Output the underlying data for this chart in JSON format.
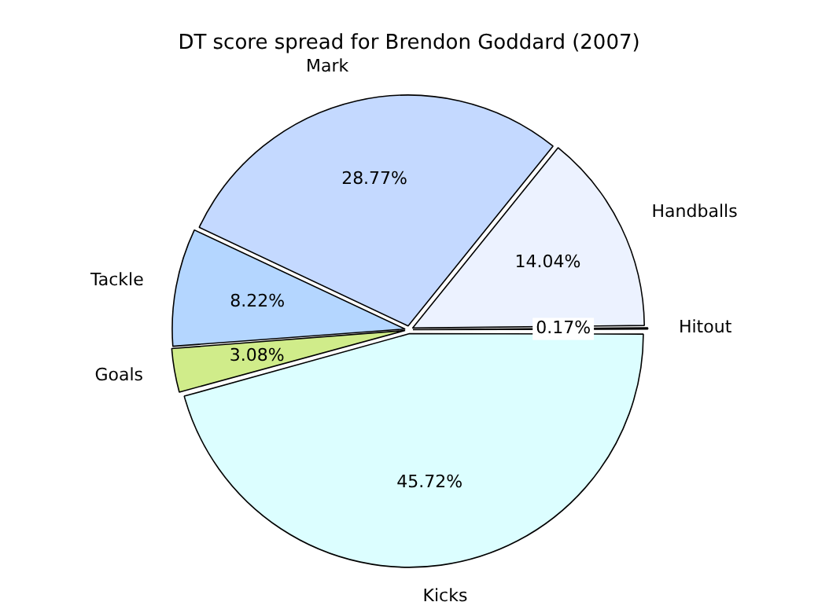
{
  "chart_data": {
    "type": "pie",
    "title": "DT score spread for Brendon Goddard (2007)",
    "categories": [
      "Kicks",
      "Goals",
      "Tackle",
      "Mark",
      "Handballs",
      "Hitout"
    ],
    "values": [
      45.72,
      3.08,
      8.22,
      28.77,
      14.04,
      0.17
    ],
    "value_labels": [
      "45.72%",
      "3.08%",
      "8.22%",
      "28.77%",
      "14.04%",
      "0.17%"
    ],
    "colors": [
      "#dcfeff",
      "#d0ec8a",
      "#b4d6ff",
      "#c4d9ff",
      "#ecf2ff",
      "#aab4d4"
    ],
    "legend": false
  }
}
